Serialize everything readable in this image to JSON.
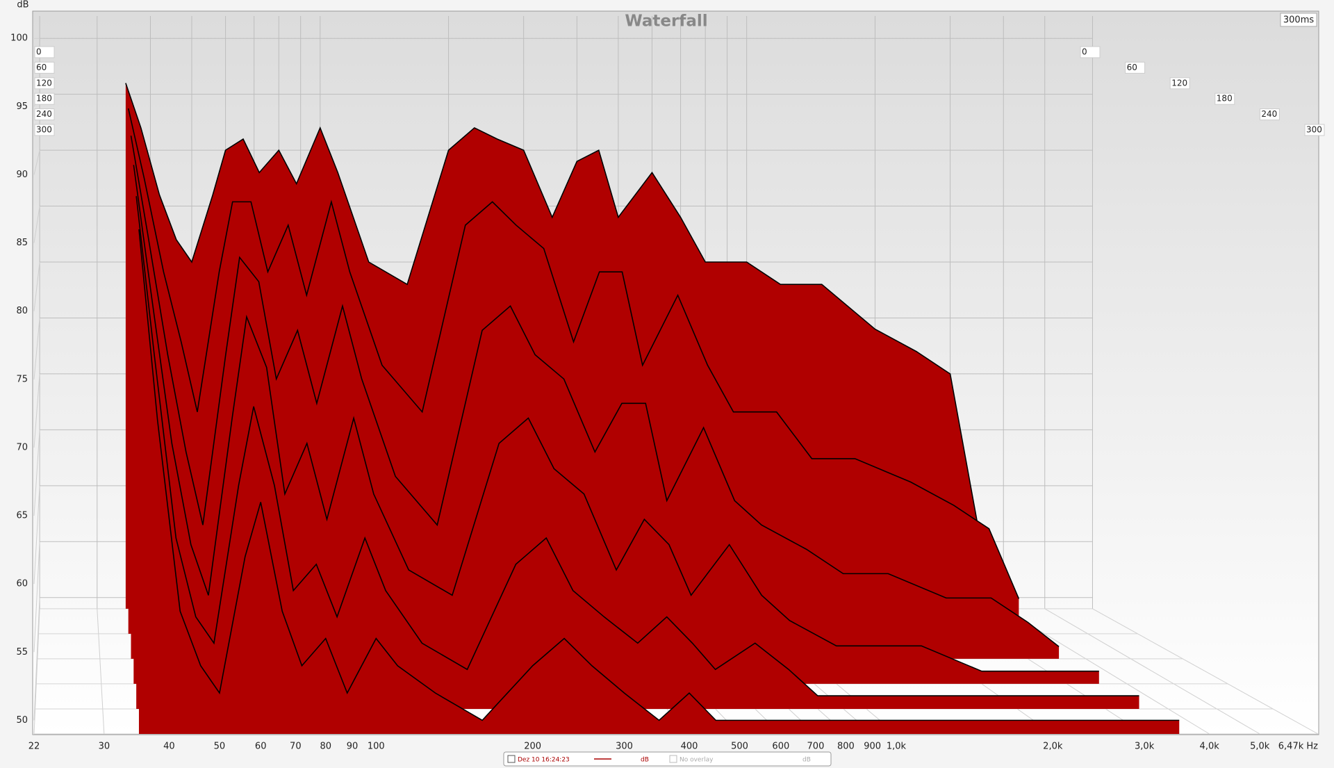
{
  "chart_data": {
    "type": "waterfall",
    "title": "Waterfall",
    "y_label": "dB",
    "time_label": "300ms",
    "log_x": true,
    "color": "#b00000",
    "edge_color": "#000000",
    "x": [
      35,
      38,
      42,
      46,
      50,
      56,
      60,
      66,
      72,
      80,
      88,
      100,
      110,
      130,
      160,
      200,
      230,
      260,
      300,
      350,
      400,
      450,
      500,
      600,
      700,
      800,
      1000,
      1200,
      1500,
      2000,
      2500,
      3000,
      3500
    ],
    "xlim": [
      22,
      6470
    ],
    "xticks": [
      22,
      30,
      40,
      50,
      60,
      70,
      80,
      90,
      100,
      200,
      300,
      400,
      500,
      600,
      700,
      800,
      900,
      {
        "value": 1000,
        "label": "1,0k"
      },
      {
        "value": 2000,
        "label": "2,0k"
      },
      {
        "value": 3000,
        "label": "3,0k"
      },
      {
        "value": 4000,
        "label": "4,0k"
      },
      {
        "value": 5000,
        "label": "5,0k"
      },
      {
        "value": 6470,
        "label": "6,47k Hz"
      }
    ],
    "ylim": [
      49,
      102
    ],
    "yticks": [
      50,
      55,
      60,
      65,
      70,
      75,
      80,
      85,
      90,
      95,
      100
    ],
    "zlim": [
      0,
      300
    ],
    "zticks": [
      0,
      60,
      120,
      180,
      240,
      300
    ],
    "slices": [
      {
        "t": 0,
        "values": [
          96,
          92,
          86,
          82,
          80,
          86,
          90,
          91,
          88,
          90,
          87,
          92,
          88,
          80,
          78,
          90,
          92,
          91,
          90,
          84,
          89,
          90,
          84,
          88,
          84,
          80,
          80,
          78,
          78,
          74,
          72,
          70,
          56
        ]
      },
      {
        "t": 60,
        "values": [
          94,
          88,
          80,
          74,
          68,
          80,
          86,
          86,
          80,
          84,
          78,
          86,
          80,
          72,
          68,
          84,
          86,
          84,
          82,
          74,
          80,
          80,
          72,
          78,
          72,
          68,
          68,
          64,
          64,
          62,
          60,
          58,
          52
        ]
      },
      {
        "t": 120,
        "values": [
          92,
          84,
          74,
          66,
          60,
          74,
          82,
          80,
          72,
          76,
          70,
          78,
          72,
          64,
          60,
          76,
          78,
          74,
          72,
          66,
          70,
          70,
          62,
          68,
          62,
          60,
          58,
          56,
          56,
          54,
          54,
          52,
          50
        ]
      },
      {
        "t": 180,
        "values": [
          90,
          80,
          68,
          60,
          56,
          70,
          78,
          74,
          64,
          68,
          62,
          70,
          64,
          58,
          56,
          68,
          70,
          66,
          64,
          58,
          62,
          60,
          56,
          60,
          56,
          54,
          52,
          52,
          52,
          50,
          50,
          50,
          50
        ]
      },
      {
        "t": 240,
        "values": [
          88,
          76,
          62,
          56,
          54,
          66,
          72,
          66,
          58,
          60,
          56,
          62,
          58,
          54,
          52,
          60,
          62,
          58,
          56,
          54,
          56,
          54,
          52,
          54,
          52,
          50,
          50,
          50,
          50,
          50,
          50,
          50,
          50
        ]
      },
      {
        "t": 300,
        "values": [
          86,
          72,
          58,
          54,
          52,
          62,
          66,
          58,
          54,
          56,
          52,
          56,
          54,
          52,
          50,
          54,
          56,
          54,
          52,
          50,
          52,
          50,
          50,
          50,
          50,
          50,
          50,
          50,
          50,
          50,
          50,
          50,
          50
        ]
      }
    ],
    "legend": {
      "label": "Dez 10 16:24:23",
      "unit": "dB",
      "overlay": "No overlay",
      "overlay_unit": "dB"
    }
  }
}
